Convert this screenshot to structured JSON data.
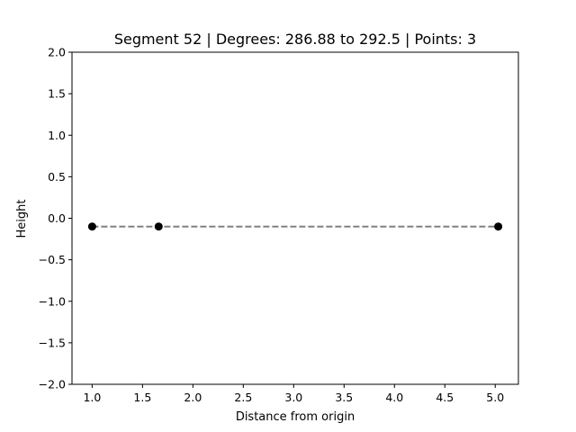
{
  "chart_data": {
    "type": "scatter",
    "title": "Segment 52 | Degrees: 286.88 to 292.5 | Points: 3",
    "xlabel": "Distance from origin",
    "ylabel": "Height",
    "xlim": [
      0.8,
      5.23
    ],
    "ylim": [
      -2.0,
      2.0
    ],
    "xticks": [
      1.0,
      1.5,
      2.0,
      2.5,
      3.0,
      3.5,
      4.0,
      4.5,
      5.0
    ],
    "yticks": [
      -2.0,
      -1.5,
      -1.0,
      -0.5,
      0.0,
      0.5,
      1.0,
      1.5,
      2.0
    ],
    "x_tick_labels": [
      "1.0",
      "1.5",
      "2.0",
      "2.5",
      "3.0",
      "3.5",
      "4.0",
      "4.5",
      "5.0"
    ],
    "y_tick_labels": [
      "−2.0",
      "−1.5",
      "−1.0",
      "−0.5",
      "0.0",
      "0.5",
      "1.0",
      "1.5",
      "2.0"
    ],
    "grid": false,
    "series": [
      {
        "x": [
          1.0,
          1.66,
          5.03
        ],
        "values": [
          -0.1,
          -0.1,
          -0.1
        ],
        "marker_color": "#000000",
        "line_color": "#808080",
        "line_style": "dashed"
      }
    ]
  }
}
